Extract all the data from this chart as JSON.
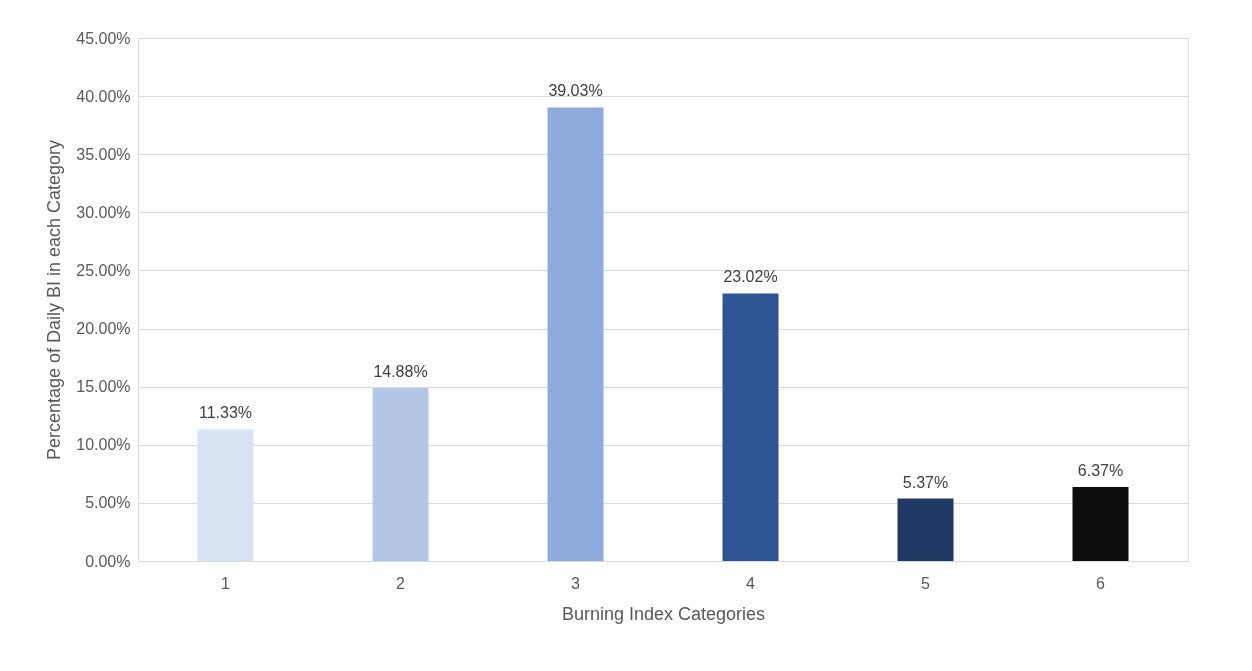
{
  "chart_data": {
    "type": "bar",
    "xlabel": "Burning Index Categories",
    "ylabel": "Percentage of Daily BI in each Category",
    "categories": [
      "1",
      "2",
      "3",
      "4",
      "5",
      "6"
    ],
    "values": [
      11.33,
      14.88,
      39.03,
      23.02,
      5.37,
      6.37
    ],
    "colors": [
      "#dae3f3",
      "#b4c7e7",
      "#8faadc",
      "#2f5597",
      "#203864",
      "#0d0d0d"
    ],
    "value_labels": [
      "11.33%",
      "14.88%",
      "39.03%",
      "23.02%",
      "5.37%",
      "6.37%"
    ],
    "ylim": [
      0,
      45
    ],
    "yticks": [
      {
        "value": 0,
        "label": "0.00%"
      },
      {
        "value": 5,
        "label": "5.00%"
      },
      {
        "value": 10,
        "label": "10.00%"
      },
      {
        "value": 15,
        "label": "15.00%"
      },
      {
        "value": 20,
        "label": "20.00%"
      },
      {
        "value": 25,
        "label": "25.00%"
      },
      {
        "value": 30,
        "label": "30.00%"
      },
      {
        "value": 35,
        "label": "35.00%"
      },
      {
        "value": 40,
        "label": "40.00%"
      },
      {
        "value": 45,
        "label": "45.00%"
      }
    ],
    "grid": "y"
  }
}
